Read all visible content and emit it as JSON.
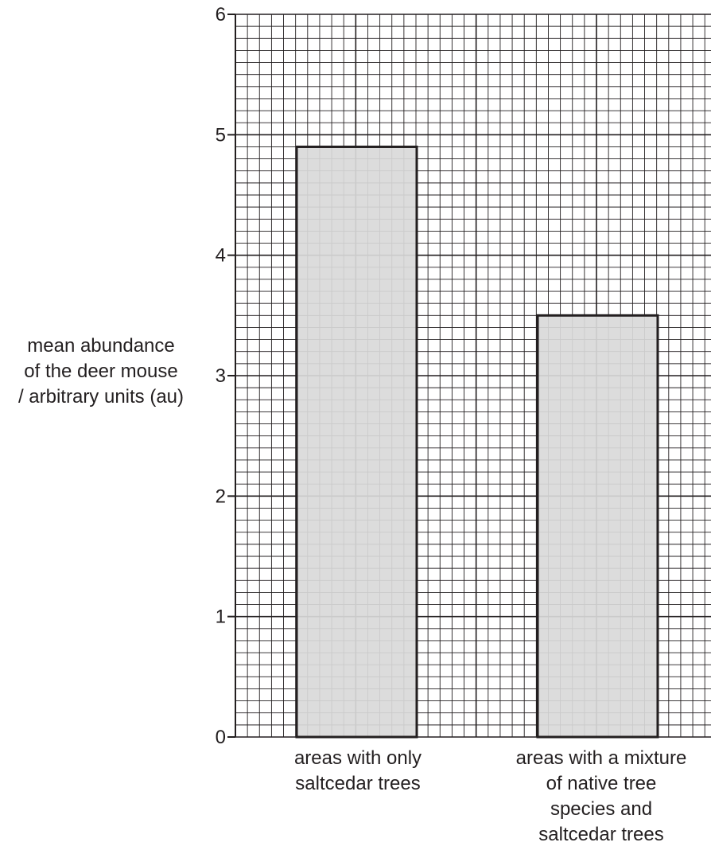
{
  "chart_data": {
    "type": "bar",
    "title": "",
    "xlabel": "",
    "ylabel": [
      "mean abundance",
      "of the deer mouse",
      "/ arbitrary units (au)"
    ],
    "ylim": [
      0,
      6
    ],
    "yticks": [
      "0",
      "1",
      "2",
      "3",
      "4",
      "5",
      "6"
    ],
    "categories": [
      [
        "areas with only",
        "saltcedar trees"
      ],
      [
        "areas with a mixture",
        "of native tree",
        "species and",
        "saltcedar trees"
      ]
    ],
    "values": [
      4.9,
      3.5
    ],
    "grid": "graph paper (major every 1 au, minor every 0.1 au)",
    "colors": {
      "bar_fill": "#d9d9d9",
      "bar_stroke": "#231f20",
      "grid_minor": "#231f20",
      "grid_major": "#231f20",
      "axis": "#231f20",
      "text": "#231f20"
    }
  }
}
